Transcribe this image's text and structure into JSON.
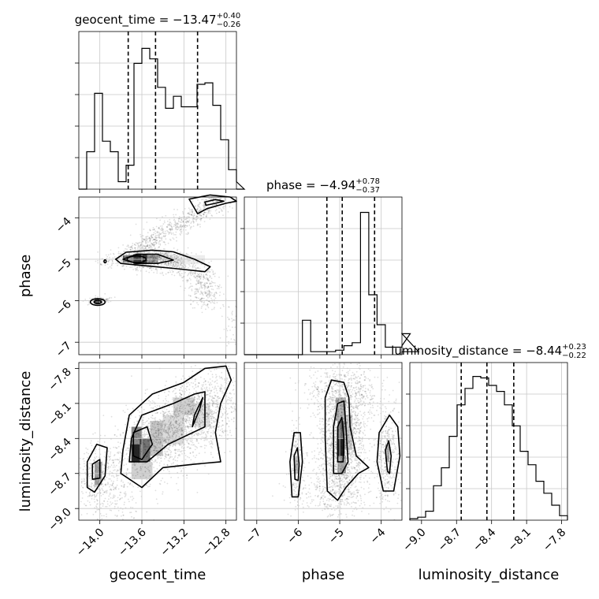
{
  "chart_data": {
    "type": "corner",
    "parameters": [
      "geocent_time",
      "phase",
      "luminosity_distance"
    ],
    "titles": [
      {
        "param": "geocent_time",
        "prefix": "geocent_time = ",
        "median": "−13.47",
        "upper": "+0.40",
        "lower": "−0.26"
      },
      {
        "param": "phase",
        "prefix": "phase = ",
        "median": "−4.94",
        "upper": "+0.78",
        "lower": "−0.37"
      },
      {
        "param": "luminosity_distance",
        "prefix": "luminosity_distance = ",
        "median": "−8.44",
        "upper": "+0.23",
        "lower": "−0.22"
      }
    ],
    "ranges": {
      "geocent_time": [
        -14.2,
        -12.7
      ],
      "phase": [
        -7.3,
        -3.5
      ],
      "luminosity_distance": [
        -9.1,
        -7.75
      ]
    },
    "ticks": {
      "geocent_time": [
        "−14.0",
        "−13.6",
        "−13.2",
        "−12.8"
      ],
      "geocent_time_values": [
        -14.0,
        -13.6,
        -13.2,
        -12.8
      ],
      "phase": [
        "−7",
        "−6",
        "−5",
        "−4"
      ],
      "phase_values": [
        -7,
        -6,
        -5,
        -4
      ],
      "luminosity_distance": [
        "−9.0",
        "−8.7",
        "−8.4",
        "−8.1",
        "−7.8"
      ],
      "luminosity_distance_values": [
        -9.0,
        -8.7,
        -8.4,
        -8.1,
        -7.8
      ]
    },
    "quantiles": {
      "geocent_time": [
        -13.73,
        -13.47,
        -13.07
      ],
      "phase": [
        -5.31,
        -4.94,
        -4.16
      ],
      "luminosity_distance": [
        -8.66,
        -8.44,
        -8.21
      ]
    },
    "histograms": {
      "geocent_time": {
        "edges_start": -14.2,
        "bin_width": 0.075,
        "counts": [
          0.0,
          0.25,
          0.64,
          0.32,
          0.25,
          0.05,
          0.16,
          0.84,
          0.94,
          0.87,
          0.68,
          0.54,
          0.62,
          0.55,
          0.55,
          0.7,
          0.71,
          0.56,
          0.33,
          0.13,
          0.05,
          0.0
        ]
      },
      "phase": {
        "edges_start": -7.3,
        "bin_width": 0.2,
        "counts": [
          0,
          0,
          0,
          0,
          0,
          0,
          0,
          0.23,
          0.02,
          0.02,
          0.02,
          0.03,
          0.06,
          0.08,
          0.95,
          0.4,
          0.2,
          0.05,
          0.05,
          0.06,
          0.14,
          0.02
        ]
      },
      "luminosity_distance": {
        "edges_start": -9.1,
        "bin_width": 0.0675,
        "counts": [
          0.01,
          0.02,
          0.06,
          0.23,
          0.35,
          0.56,
          0.77,
          0.88,
          0.96,
          0.95,
          0.9,
          0.86,
          0.77,
          0.63,
          0.46,
          0.37,
          0.26,
          0.18,
          0.1,
          0.03
        ]
      }
    },
    "grid": true
  }
}
